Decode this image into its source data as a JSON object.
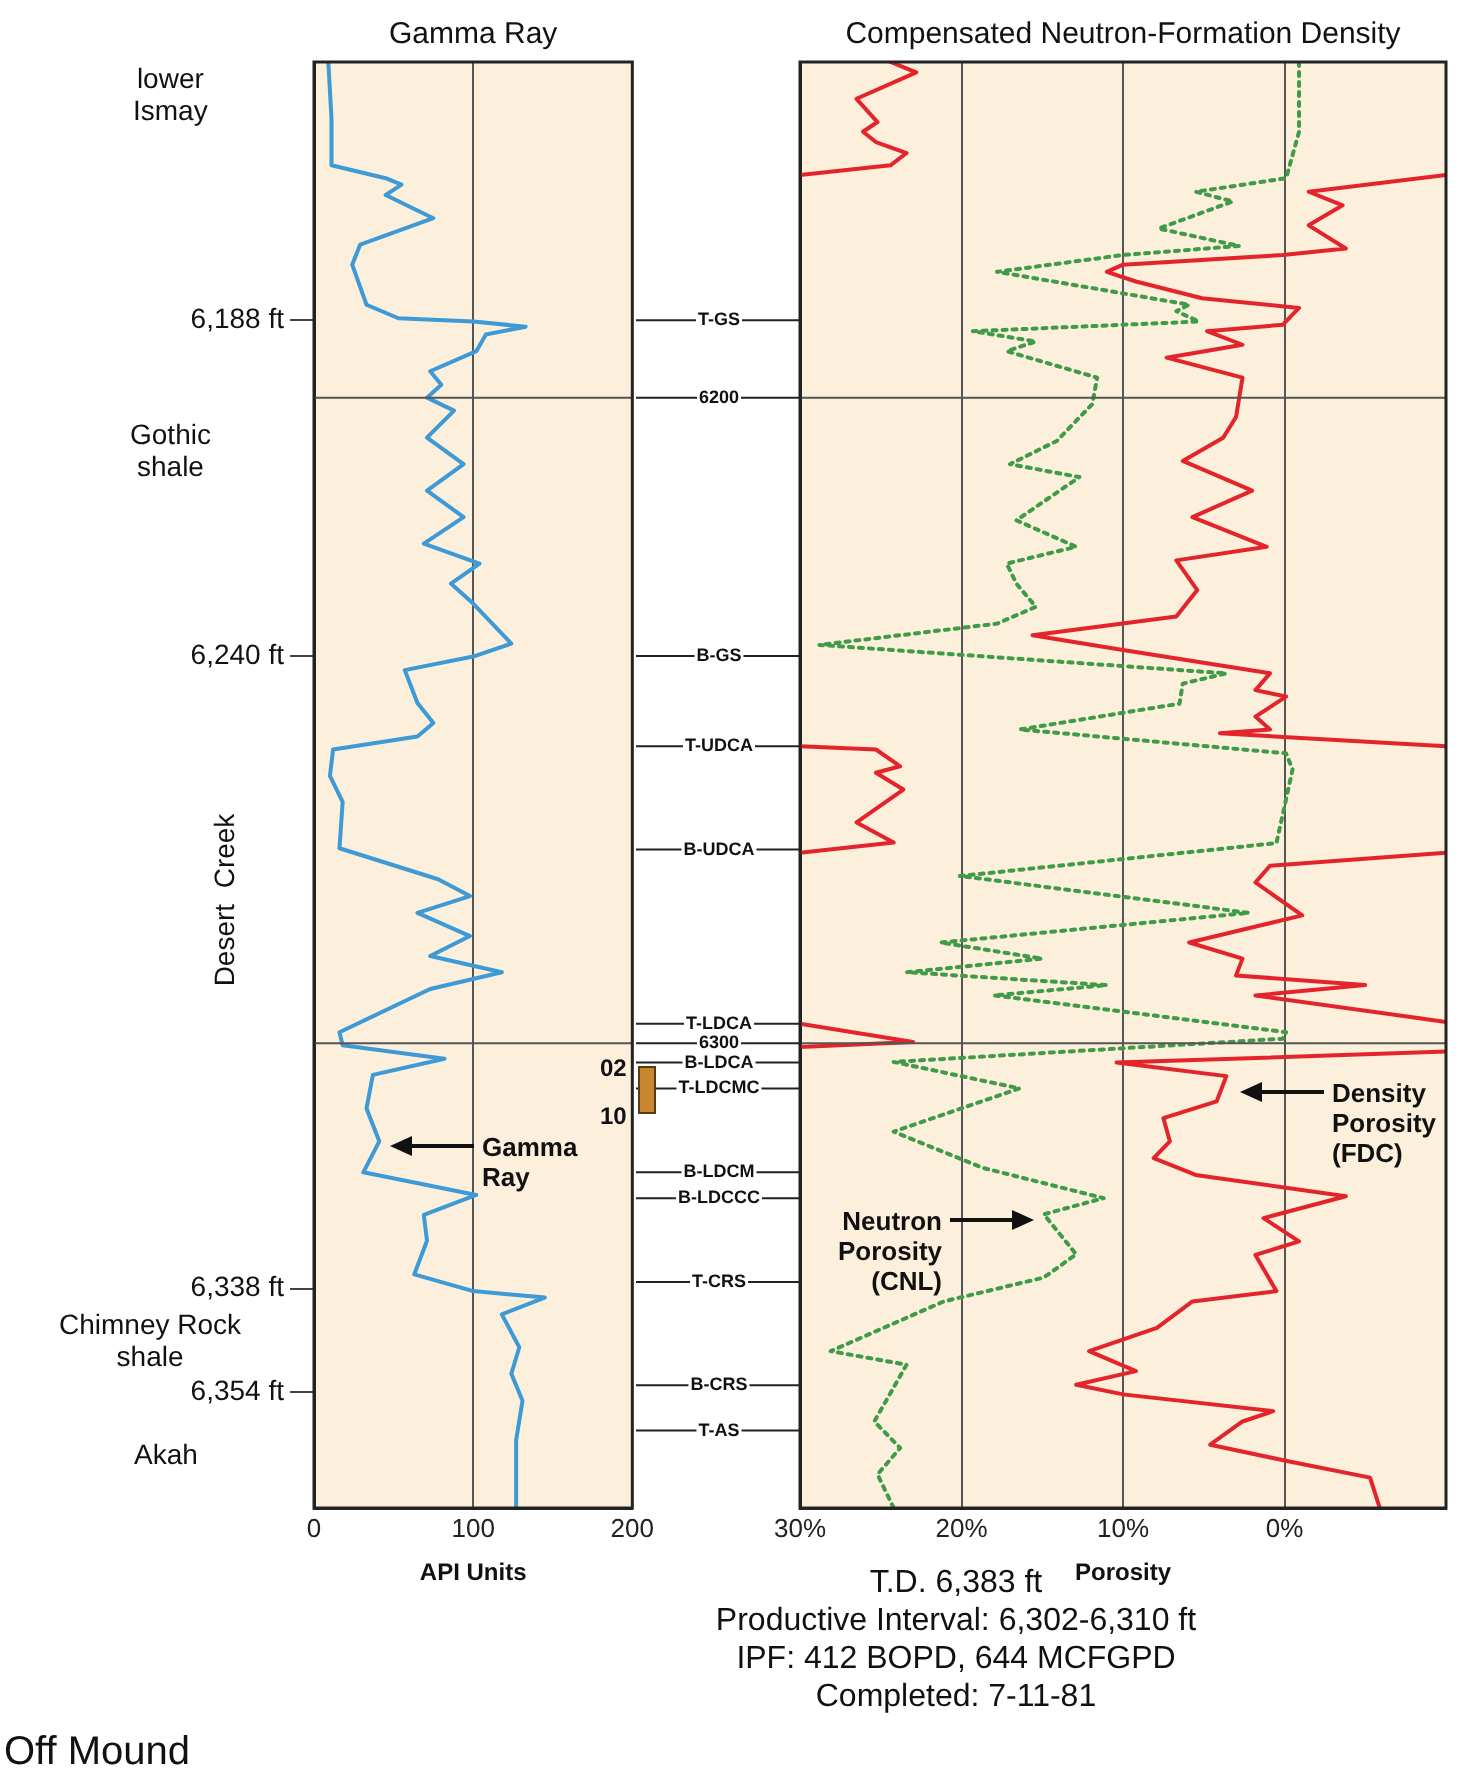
{
  "chart_data": [
    {
      "type": "line",
      "orientation": "horizontal",
      "title": "Gamma Ray",
      "xlabel": "API Units",
      "xlim": [
        0,
        200
      ],
      "xticks": [
        0,
        100,
        200
      ],
      "ylim": [
        6372,
        6148
      ],
      "yticks": [
        {
          "value": 6188,
          "label": "6,188 ft"
        },
        {
          "value": 6240,
          "label": "6,240 ft"
        },
        {
          "value": 6338,
          "label": "6,338 ft"
        },
        {
          "value": 6354,
          "label": "6,354 ft"
        }
      ],
      "grid": "x",
      "marker": "none",
      "ref_lines": [
        {
          "axis": "y",
          "value": 6200,
          "color": "#555555"
        },
        {
          "axis": "y",
          "value": 6300,
          "color": "#555555"
        }
      ],
      "series": [
        {
          "name": "Gamma Ray",
          "color": "#3d9ad6",
          "line_style": "solid",
          "x": [
            6148,
            6156.8,
            6164,
            6166,
            6167,
            6168.6,
            6172.2,
            6176.3,
            6179.4,
            6185.6,
            6187.7,
            6188.2,
            6189,
            6190.2,
            6192.8,
            6195.9,
            6198,
            6200,
            6202,
            6206.2,
            6210.3,
            6214.4,
            6218.5,
            6222.6,
            6225.7,
            6228.8,
            6231.9,
            6238.1,
            6240.1,
            6242.2,
            6247.3,
            6250.4,
            6252.5,
            6254.5,
            6258.6,
            6262.6,
            6269.8,
            6274.6,
            6277.2,
            6279.8,
            6283.4,
            6286.5,
            6289,
            6291.6,
            6298.3,
            6300.3,
            6302.4,
            6304.9,
            6310.1,
            6315.2,
            6320,
            6323.5,
            6326.6,
            6330.6,
            6335.8,
            6338.4,
            6339.4,
            6342,
            6347.1,
            6351.2,
            6355.4,
            6361.5,
            6372
          ],
          "values": [
            9,
            11,
            11,
            45,
            55,
            45,
            75,
            29,
            24,
            33,
            53,
            100,
            133,
            108,
            102,
            73,
            80,
            71,
            88,
            71,
            94,
            71,
            94,
            69,
            104,
            86,
            100,
            124,
            100,
            57,
            65,
            75,
            65,
            12,
            10,
            18,
            16,
            78,
            98,
            65,
            98,
            73,
            118,
            73,
            16,
            18,
            82,
            37,
            33,
            41,
            31,
            102,
            69,
            71,
            63,
            100,
            145,
            118,
            129,
            124,
            131,
            127,
            127
          ]
        }
      ],
      "annotations": [
        "lower\nIsmay",
        "Gothic\nshale",
        "Desert  Creek",
        "Chimney Rock\nshale",
        "Akah",
        "02",
        "10",
        "Off Mound"
      ]
    },
    {
      "type": "line",
      "orientation": "horizontal",
      "title": "Compensated Neutron-Formation Density",
      "xlabel": "Porosity",
      "xlim": [
        30,
        -10
      ],
      "xticks": [
        {
          "value": 30,
          "label": "30%"
        },
        {
          "value": 20,
          "label": "20%"
        },
        {
          "value": 10,
          "label": "10%"
        },
        {
          "value": 0,
          "label": "0%"
        }
      ],
      "ylim": [
        6372,
        6148
      ],
      "yticks": [
        {
          "value": 6188,
          "label": "T-GS"
        },
        6200,
        {
          "value": 6240,
          "label": "B-GS"
        },
        {
          "value": 6254,
          "label": "T-UDCA"
        },
        {
          "value": 6270,
          "label": "B-UDCA"
        },
        {
          "value": 6297,
          "label": "T-LDCA"
        },
        6300,
        {
          "value": 6303,
          "label": "B-LDCA"
        },
        {
          "value": 6307,
          "label": "T-LDCMC"
        },
        {
          "value": 6320,
          "label": "B-LDCM"
        },
        {
          "value": 6324,
          "label": "B-LDCCC"
        },
        {
          "value": 6337,
          "label": "T-CRS"
        },
        {
          "value": 6353,
          "label": "B-CRS"
        },
        {
          "value": 6360,
          "label": "T-AS"
        }
      ],
      "grid": "x",
      "marker": "none",
      "ref_lines": [
        {
          "axis": "y",
          "value": 6200,
          "color": "#555555"
        },
        {
          "axis": "y",
          "value": 6300,
          "color": "#555555"
        }
      ],
      "series": [
        {
          "color": "#e3242b",
          "line_style": "solid",
          "x": [
            6148,
            6149.6,
            6153.7,
            6157.3,
            6158.8,
            6160.4,
            6162.1,
            6164,
            6165.5
          ],
          "values": [
            24.4,
            22.8,
            26.5,
            25.2,
            26.1,
            25.3,
            23.4,
            24.4,
            30
          ]
        },
        {
          "color": "#e3242b",
          "line_style": "solid",
          "x": [
            6165.5,
            6168.1,
            6170.2,
            6173.3,
            6176.9,
            6177.9,
            6179.4,
            6180.5,
            6182,
            6184.6,
            6186.1,
            6188.7,
            6189.7,
            6191.8,
            6193.8,
            6196.9,
            6203,
            6206.2,
            6209.8,
            6214.4,
            6218.5,
            6223.1,
            6225.2,
            6229.8,
            6233.9,
            6236.8,
            6239.1,
            6242.7,
            6245.3,
            6246.3,
            6249.4,
            6251.4,
            6252,
            6254
          ],
          "values": [
            -10,
            -1.5,
            -3.6,
            -1.5,
            -3.8,
            0.1,
            10,
            11,
            9.2,
            5.1,
            -0.9,
            0.1,
            4.8,
            2.6,
            7.3,
            2.6,
            3,
            3.8,
            6.3,
            2,
            5.7,
            1.1,
            6.7,
            5.4,
            6.7,
            15.6,
            10,
            0.9,
            1.8,
            -0.1,
            1.8,
            0.9,
            4,
            -10
          ]
        },
        {
          "color": "#e3242b",
          "line_style": "solid",
          "x": [
            6254,
            6254.5,
            6257.1,
            6258.1,
            6260.7,
            6265.8,
            6268.9,
            6270.5
          ],
          "values": [
            30,
            25.3,
            23.8,
            25.3,
            23.6,
            26.5,
            24.2,
            30
          ]
        },
        {
          "color": "#e3242b",
          "line_style": "solid",
          "x": [
            6270.5,
            6272.5,
            6275.1,
            6280.2,
            6284.4,
            6286.9,
            6289.5,
            6291,
            6292.6,
            6296.7
          ],
          "values": [
            -10,
            0.9,
            1.8,
            -1.1,
            5.9,
            2.6,
            3,
            -5,
            1.8,
            -10
          ]
        },
        {
          "color": "#e3242b",
          "line_style": "solid",
          "x": [
            6297,
            6299.8,
            6300.6
          ],
          "values": [
            30,
            23,
            30
          ]
        },
        {
          "name": "Density Porosity (FDC)",
          "color": "#e3242b",
          "line_style": "solid",
          "x": [
            6301.3,
            6303,
            6305.1,
            6309,
            6311.6,
            6315.2,
            6317.8,
            6320.4,
            6323.7,
            6327.1,
            6330.7,
            6332.8,
            6338.4,
            6340,
            6344.1,
            6347.7,
            6350.8,
            6352.9,
            6354.4,
            6357,
            6358.6,
            6362.2,
            6364.8,
            6367.3,
            6372
          ],
          "values": [
            -10,
            10.4,
            3.6,
            4.2,
            7.5,
            7.1,
            8.1,
            5.5,
            -3.8,
            1.3,
            -0.9,
            1.8,
            0.5,
            5.7,
            7.9,
            12.1,
            9.2,
            12.9,
            10,
            0.7,
            2.6,
            4.6,
            -0.3,
            -5.3,
            -5.9
          ]
        },
        {
          "name": "Neutron Porosity (CNL)",
          "color": "#3f9b48",
          "line_style": "dotted",
          "x": [
            6148,
            6158.8,
            6166,
            6168.1,
            6169.6,
            6173.8,
            6176.5,
            6177.9,
            6180.5,
            6185.6,
            6186.6,
            6188.2,
            6189.7,
            6191.3,
            6192.8,
            6196.9,
            6201,
            6206.7,
            6210.3,
            6212.3,
            6219,
            6223.1,
            6225.7,
            6228.8,
            6232.4,
            6235,
            6238.3,
            6242.7,
            6244.3,
            6247.4,
            6251.4,
            6255.1,
            6257.6,
            6269,
            6274.1,
            6279.8,
            6284.4,
            6286.9,
            6289,
            6291,
            6292.6,
            6298.3,
            6299.3,
            6302.9,
            6307,
            6313.7,
            6319.3,
            6324,
            6326.5,
            6332.7,
            6336.3,
            6340,
            6347.7,
            6349.8,
            6358.6,
            6362.7,
            6366.8,
            6372
          ],
          "values": [
            -0.9,
            -0.9,
            -0.1,
            5.5,
            3.2,
            7.8,
            2.8,
            10,
            17.8,
            5.9,
            6.7,
            5.3,
            19.3,
            15.4,
            17.2,
            11.6,
            11.9,
            14.1,
            17,
            12.7,
            16.6,
            12.9,
            17.2,
            16.6,
            15.4,
            17.8,
            28.8,
            3.6,
            6.3,
            6.5,
            16.4,
            -0.1,
            -0.5,
            0.5,
            20.1,
            2.2,
            21.3,
            15,
            23.4,
            11,
            18,
            -0.1,
            0.1,
            24.2,
            16.4,
            24.2,
            18.7,
            11.2,
            14.9,
            12.9,
            14.9,
            21.1,
            28.1,
            23.4,
            25.4,
            23.8,
            25.2,
            24.2
          ]
        }
      ],
      "annotations": [
        "T.D. 6,383 ft",
        "Productive Interval: 6,302-6,310 ft",
        "IPF: 412 BOPD, 644 MCFGPD",
        "Completed: 7-11-81"
      ]
    }
  ]
}
